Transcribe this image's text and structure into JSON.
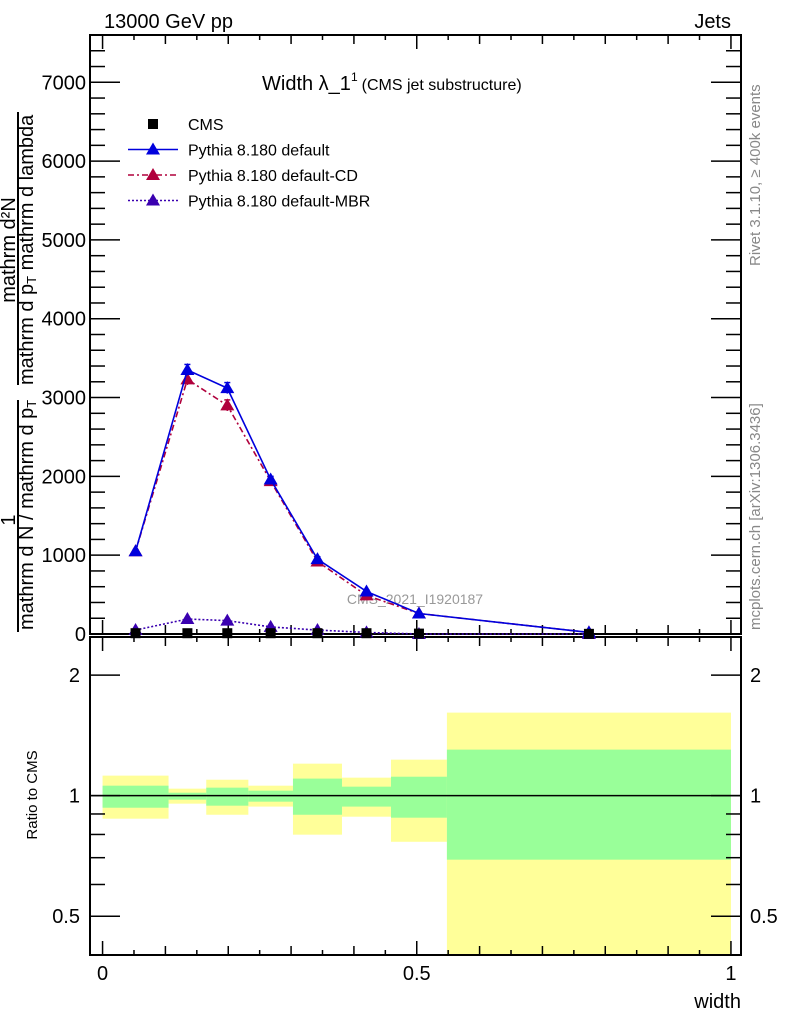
{
  "header": {
    "left": "13000 GeV pp",
    "right": "Jets"
  },
  "side_labels": {
    "rivet": "Rivet 3.1.10, ≥ 400k events",
    "mcplots": "mcplots.cern.ch [arXiv:1306.3436]"
  },
  "watermark": "CMS_2021_I1920187",
  "chart_data": [
    {
      "type": "line",
      "title": "Width λ_1",
      "title_sup": "1",
      "subtitle": "(CMS jet substructure)",
      "ylabel_parts": {
        "one": "1",
        "den": "mathrm d N / mathrm d p",
        "den_sub": "T",
        "num": "mathrm d²N",
        "num_den": "mathrm d p",
        "num_den_sub": "T",
        "num_den_tail": " mathrm d lambda"
      },
      "xlim": [
        -0.02,
        1.016
      ],
      "ylim": [
        0,
        7600
      ],
      "yticks": [
        0,
        1000,
        2000,
        3000,
        4000,
        5000,
        6000,
        7000
      ],
      "ytick_labels": [
        "0",
        "1000",
        "2000",
        "3000",
        "4000",
        "5000",
        "6000",
        "7000"
      ],
      "bin_edges": [
        0,
        0.105,
        0.165,
        0.232,
        0.303,
        0.381,
        0.459,
        0.548,
        1.0
      ],
      "x": [
        0.0525,
        0.135,
        0.1985,
        0.2675,
        0.342,
        0.42,
        0.5035,
        0.774
      ],
      "legend_position": "top-left",
      "series": [
        {
          "name": "CMS",
          "color": "#000000",
          "marker": "square",
          "line": "none",
          "values": [
            10,
            10,
            10,
            10,
            10,
            10,
            5,
            2
          ]
        },
        {
          "name": "Pythia 8.180 default",
          "color": "#0000dd",
          "marker": "triangle",
          "line": "solid",
          "values": [
            1050,
            3350,
            3120,
            1960,
            950,
            540,
            260,
            20
          ],
          "errors": [
            20,
            70,
            70,
            40,
            30,
            20,
            10,
            2
          ]
        },
        {
          "name": "Pythia 8.180 default-CD",
          "color": "#b0003c",
          "marker": "triangle",
          "line": "dashdot",
          "values": [
            1050,
            3230,
            2900,
            1940,
            920,
            490,
            260,
            20
          ],
          "errors": [
            20,
            70,
            70,
            40,
            30,
            20,
            10,
            2
          ]
        },
        {
          "name": "Pythia 8.180 default-MBR",
          "color": "#3a00b0",
          "marker": "triangle",
          "line": "dotted",
          "values": [
            50,
            190,
            170,
            90,
            50,
            20,
            0,
            0
          ]
        }
      ]
    },
    {
      "type": "area",
      "ylabel": "Ratio to CMS",
      "xlabel": "width",
      "scale": "log",
      "xlim": [
        -0.02,
        1.016
      ],
      "ylim": [
        0.4,
        2.49
      ],
      "yticks": [
        0.5,
        1,
        2
      ],
      "ytick_labels": [
        "0.5",
        "1",
        "2"
      ],
      "xticks": [
        0,
        0.5,
        1
      ],
      "xtick_labels": [
        "0",
        "0.5",
        "1"
      ],
      "bin_edges": [
        0,
        0.105,
        0.165,
        0.232,
        0.303,
        0.381,
        0.459,
        0.548,
        1.0
      ],
      "total_band": {
        "color": "#ffff99",
        "low": [
          0.876,
          0.955,
          0.896,
          0.939,
          0.799,
          0.886,
          0.767,
          0.4
        ],
        "high": [
          1.122,
          1.041,
          1.096,
          1.059,
          1.202,
          1.109,
          1.23,
          1.612
        ]
      },
      "stat_band": {
        "color": "#99ff99",
        "low": [
          0.933,
          0.977,
          0.944,
          0.966,
          0.896,
          0.939,
          0.881,
          0.692
        ],
        "high": [
          1.059,
          1.017,
          1.047,
          1.029,
          1.103,
          1.053,
          1.115,
          1.303
        ]
      },
      "reference_line": 1
    }
  ]
}
